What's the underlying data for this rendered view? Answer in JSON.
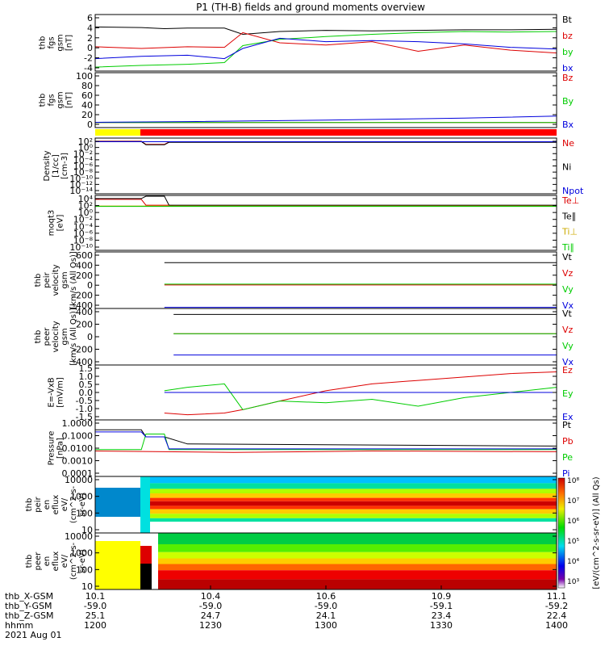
{
  "title": "P1 (TH-B) fields and ground moments overview",
  "colors": {
    "black": "#000000",
    "red": "#dd0000",
    "green": "#00cc00",
    "blue": "#0000dd",
    "yellow": "#ffff00",
    "barred": "#ff0000"
  },
  "chart_data": [
    {
      "type": "line",
      "ylabel": [
        "thb",
        "fgs",
        "gsm",
        "[nT]"
      ],
      "yticks": [
        "6",
        "4",
        "2",
        "0",
        "-2",
        "-4"
      ],
      "ylim": [
        -4,
        6
      ],
      "series": [
        {
          "name": "Bt",
          "color": "black",
          "x": [
            10.1,
            10.2,
            10.25,
            10.3,
            10.38,
            10.42,
            10.5,
            10.6,
            10.7,
            10.8,
            10.9,
            11.0,
            11.1
          ],
          "y": [
            3.8,
            3.7,
            3.5,
            3.6,
            3.6,
            2.5,
            3.0,
            3.2,
            3.1,
            3.2,
            3.3,
            3.3,
            3.4
          ]
        },
        {
          "name": "bz",
          "color": "red",
          "x": [
            10.1,
            10.2,
            10.3,
            10.38,
            10.42,
            10.5,
            10.6,
            10.7,
            10.8,
            10.9,
            11.0,
            11.1
          ],
          "y": [
            0.3,
            0.0,
            0.3,
            0.2,
            2.8,
            1.0,
            0.6,
            1.2,
            -0.5,
            0.6,
            -0.3,
            -0.8
          ]
        },
        {
          "name": "by",
          "color": "green",
          "x": [
            10.1,
            10.2,
            10.3,
            10.38,
            10.42,
            10.5,
            10.6,
            10.7,
            10.8,
            10.9,
            11.0,
            11.1
          ],
          "y": [
            -3.3,
            -3.0,
            -2.8,
            -2.5,
            0.5,
            1.6,
            2.1,
            2.5,
            2.8,
            3.0,
            2.9,
            3.0
          ]
        },
        {
          "name": "bx",
          "color": "blue",
          "x": [
            10.1,
            10.2,
            10.3,
            10.38,
            10.42,
            10.5,
            10.6,
            10.7,
            10.8,
            10.9,
            11.0,
            11.1
          ],
          "y": [
            -1.8,
            -1.4,
            -1.2,
            -1.8,
            0.0,
            1.8,
            1.2,
            1.4,
            1.2,
            0.8,
            0.2,
            -0.1
          ]
        }
      ]
    },
    {
      "type": "line",
      "ylabel": [
        "thb",
        "fgs",
        "gsm",
        "[nT]"
      ],
      "yticks": [
        "100",
        "80",
        "60",
        "40",
        "20",
        "0"
      ],
      "ylim": [
        -10,
        100
      ],
      "series": [
        {
          "name": "Bz",
          "color": "red",
          "x": [
            10.1,
            11.1
          ],
          "y": [
            0,
            0
          ]
        },
        {
          "name": "By",
          "color": "green",
          "x": [
            10.1,
            11.1
          ],
          "y": [
            0,
            0
          ]
        },
        {
          "name": "Bx",
          "color": "blue",
          "x": [
            10.1,
            10.3,
            10.6,
            10.9,
            11.1
          ],
          "y": [
            0.5,
            2,
            5,
            9,
            13
          ]
        }
      ]
    },
    {
      "type": "line",
      "log": true,
      "ylabel": [
        "Density",
        "[1/cc]",
        "[cm-3]"
      ],
      "yticks": [
        "10²",
        "10⁰",
        "10⁻²",
        "10⁻⁴",
        "10⁻⁶",
        "10⁻⁸",
        "10⁻¹⁰",
        "10⁻¹²",
        "10⁻¹⁴"
      ],
      "ylim": [
        -14,
        2
      ],
      "series": [
        {
          "name": "Ne",
          "color": "red",
          "x": [
            10.1,
            10.2,
            10.21,
            10.25,
            10.26,
            11.1
          ],
          "y": [
            1.1,
            1.1,
            0.2,
            0.2,
            0.9,
            0.9
          ]
        },
        {
          "name": "Ni",
          "color": "black",
          "x": [
            10.1,
            10.2,
            10.21,
            10.25,
            10.26,
            11.1
          ],
          "y": [
            1.0,
            1.0,
            0.1,
            0.1,
            0.8,
            0.8
          ]
        },
        {
          "name": "Npot",
          "color": "blue",
          "x": [
            10.1,
            11.1
          ],
          "y": [
            0.95,
            0.95
          ]
        }
      ]
    },
    {
      "type": "line",
      "log": true,
      "ylabel": [
        "moqt3",
        "[eV]"
      ],
      "yticks": [
        "10⁴",
        "10²",
        "10⁰",
        "10⁻²",
        "10⁻⁴",
        "10⁻⁶",
        "10⁻⁸",
        "10⁻¹⁰"
      ],
      "ylim": [
        -10,
        4
      ],
      "series": [
        {
          "name": "Te⊥",
          "color": "red",
          "x": [
            10.1,
            10.2,
            10.21,
            10.26,
            10.27,
            11.1
          ],
          "y": [
            3.0,
            3.0,
            1.5,
            1.5,
            1.3,
            1.3
          ]
        },
        {
          "name": "Te∥",
          "color": "black",
          "x": [
            10.1,
            10.2,
            10.21,
            10.25,
            10.26,
            11.1
          ],
          "y": [
            3.2,
            3.2,
            3.8,
            3.8,
            1.5,
            1.5
          ]
        },
        {
          "name": "Ti⊥",
          "color": "#ccaa00",
          "x": [
            10.1,
            11.1
          ],
          "y": [
            1.3,
            1.3
          ]
        },
        {
          "name": "Ti∥",
          "color": "green",
          "x": [
            10.1,
            11.1
          ],
          "y": [
            1.2,
            1.2
          ]
        }
      ]
    },
    {
      "type": "line",
      "ylabel": [
        "thb",
        "peir",
        "velocity",
        "gsm",
        "[km/s (All Qs)]"
      ],
      "yticks": [
        "600",
        "400",
        "200",
        "0",
        "-200",
        "-400"
      ],
      "ylim": [
        -400,
        600
      ],
      "series": [
        {
          "name": "Vt",
          "color": "black",
          "x": [
            10.25,
            11.1
          ],
          "y": [
            410,
            410
          ]
        },
        {
          "name": "Vz",
          "color": "red",
          "x": [
            10.25,
            11.1
          ],
          "y": [
            15,
            15
          ]
        },
        {
          "name": "Vy",
          "color": "green",
          "x": [
            10.25,
            11.1
          ],
          "y": [
            30,
            30
          ]
        },
        {
          "name": "Vx",
          "color": "blue",
          "x": [
            10.25,
            11.1
          ],
          "y": [
            -380,
            -380
          ]
        }
      ]
    },
    {
      "type": "line",
      "ylabel": [
        "thb",
        "peer",
        "velocity",
        "gsm",
        "[km/s (All Qs)]"
      ],
      "yticks": [
        "400",
        "200",
        "0",
        "-200",
        "-400"
      ],
      "ylim": [
        -450,
        400
      ],
      "series": [
        {
          "name": "Vt",
          "color": "black",
          "x": [
            10.27,
            11.1
          ],
          "y": [
            310,
            310
          ]
        },
        {
          "name": "Vz",
          "color": "red",
          "x": [
            10.27,
            11.1
          ],
          "y": [
            20,
            20
          ]
        },
        {
          "name": "Vy",
          "color": "green",
          "x": [
            10.27,
            11.1
          ],
          "y": [
            20,
            20
          ]
        },
        {
          "name": "Vx",
          "color": "blue",
          "x": [
            10.27,
            11.1
          ],
          "y": [
            -300,
            -300
          ]
        }
      ]
    },
    {
      "type": "line",
      "ylabel": [
        "E=-VxB",
        "[mV/m]"
      ],
      "yticks": [
        "1.5",
        "1.0",
        "0.5",
        "0.0",
        "-0.5",
        "-1.0",
        "-1.5"
      ],
      "ylim": [
        -1.6,
        1.6
      ],
      "series": [
        {
          "name": "Ez",
          "color": "red",
          "x": [
            10.25,
            10.3,
            10.38,
            10.42,
            10.5,
            10.6,
            10.7,
            10.8,
            10.9,
            11.0,
            11.1
          ],
          "y": [
            -1.2,
            -1.3,
            -1.2,
            -1.0,
            -0.5,
            0.1,
            0.5,
            0.7,
            0.9,
            1.1,
            1.2
          ]
        },
        {
          "name": "Ey",
          "color": "green",
          "x": [
            10.25,
            10.3,
            10.38,
            10.42,
            10.5,
            10.6,
            10.7,
            10.8,
            10.9,
            11.0,
            11.1
          ],
          "y": [
            0.1,
            0.3,
            0.5,
            -1.0,
            -0.5,
            -0.6,
            -0.4,
            -0.8,
            -0.3,
            0.0,
            0.3
          ]
        },
        {
          "name": "Ex",
          "color": "blue",
          "x": [
            10.25,
            11.1
          ],
          "y": [
            0.0,
            0.0
          ]
        }
      ]
    },
    {
      "type": "line",
      "log": true,
      "ylabel": [
        "Pressure",
        "[nPa]"
      ],
      "yticks": [
        "1.0000",
        "0.1000",
        "0.0100",
        "0.0010",
        "0.0001"
      ],
      "ylim": [
        -4,
        0
      ],
      "series": [
        {
          "name": "Pt",
          "color": "black",
          "x": [
            10.1,
            10.2,
            10.21,
            10.25,
            10.3,
            11.1
          ],
          "y": [
            -0.7,
            -0.7,
            -1.2,
            -1.2,
            -1.7,
            -1.85
          ]
        },
        {
          "name": "Pb",
          "color": "red",
          "x": [
            10.1,
            10.4,
            10.7,
            11.1
          ],
          "y": [
            -2.2,
            -2.3,
            -2.2,
            -2.25
          ]
        },
        {
          "name": "Pe",
          "color": "green",
          "x": [
            10.1,
            10.2,
            10.21,
            10.25,
            10.26,
            11.1
          ],
          "y": [
            -2.1,
            -2.1,
            -1.0,
            -1.0,
            -2.1,
            -2.1
          ]
        },
        {
          "name": "Pi",
          "color": "blue",
          "x": [
            10.1,
            10.2,
            10.21,
            10.25,
            10.26,
            11.1
          ],
          "y": [
            -0.85,
            -0.85,
            -1.2,
            -1.2,
            -2.05,
            -2.05
          ]
        }
      ]
    },
    {
      "type": "heatmap",
      "ylabel": [
        "thb",
        "peir",
        "en",
        "eflux",
        "eV/",
        "(cm^2-s-",
        "sr-eV)"
      ],
      "yticks": [
        "10000",
        "1000",
        "100",
        "10"
      ],
      "ylim": [
        1,
        5
      ]
    },
    {
      "type": "heatmap",
      "ylabel": [
        "thb",
        "peer",
        "en",
        "eflux",
        "eV/",
        "(cm^2-s-",
        "sr-eV)"
      ],
      "yticks": [
        "10000",
        "1000",
        "100",
        "10"
      ],
      "ylim": [
        0.5,
        4.3
      ]
    }
  ],
  "colorbar": {
    "ticks": [
      "10⁸",
      "10⁷",
      "10⁶",
      "10⁵",
      "10⁴",
      "10³"
    ],
    "label": "[eV/(cm^2-s-sr-eV)] (All Qs)"
  },
  "xaxis": {
    "row_labels": [
      "thb_X-GSM",
      "thb_Y-GSM",
      "thb_Z-GSM",
      "hhmm",
      "2021 Aug 01"
    ],
    "cols": [
      [
        "10.1",
        "-59.0",
        "25.1",
        "1200"
      ],
      [
        "10.4",
        "-59.0",
        "24.7",
        "1230"
      ],
      [
        "10.6",
        "-59.0",
        "24.1",
        "1300"
      ],
      [
        "10.9",
        "-59.1",
        "23.4",
        "1330"
      ],
      [
        "11.1",
        "-59.2",
        "22.4",
        "1400"
      ]
    ]
  }
}
